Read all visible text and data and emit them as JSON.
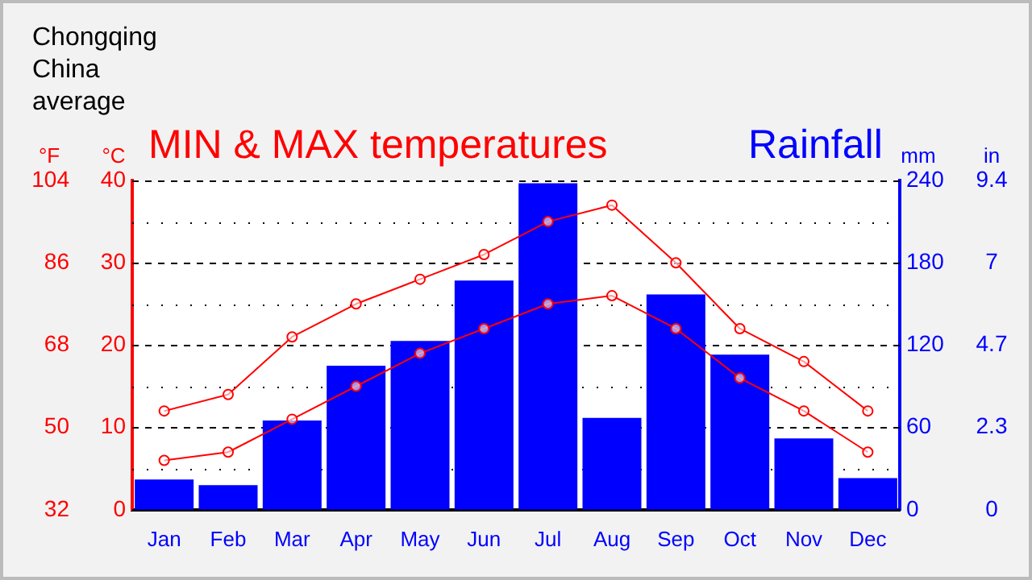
{
  "chart_data": {
    "type": "bar",
    "title": "Chongqing China average",
    "annotations": [
      "MIN & MAX temperatures",
      "Rainfall",
      "in",
      "0",
      "2.3",
      "4.7",
      "7",
      "9.4"
    ],
    "categories": [
      "Jan",
      "Feb",
      "Mar",
      "Apr",
      "May",
      "Jun",
      "Jul",
      "Aug",
      "Sep",
      "Oct",
      "Nov",
      "Dec"
    ],
    "series": [
      {
        "axis": "y2",
        "color": "#0000ff",
        "values": [
          22,
          18,
          65,
          105,
          123,
          167,
          238,
          67,
          157,
          113,
          52,
          23
        ]
      },
      {
        "type": "line",
        "axis": "y",
        "color": "#ff0000",
        "values": [
          12,
          14,
          21,
          25,
          28,
          31,
          35,
          37,
          30,
          22,
          18,
          12
        ]
      },
      {
        "type": "line",
        "axis": "y",
        "color": "#ff0000",
        "values": [
          6,
          7,
          11,
          15,
          19,
          22,
          25,
          26,
          22,
          16,
          12,
          7
        ]
      }
    ],
    "ylabel": "°C",
    "ylim": [
      0,
      40
    ],
    "yticks": [
      0,
      {
        "value": 5,
        "label": null
      },
      10,
      {
        "value": 15,
        "label": null
      },
      20,
      {
        "value": 25,
        "label": null
      },
      30,
      {
        "value": 35,
        "label": null
      },
      40
    ],
    "y2label": "mm",
    "y2lim": [
      0,
      240
    ],
    "y2ticks": [
      0,
      60,
      120,
      180,
      240
    ],
    "y3label": "°F",
    "y3lim": [
      32,
      104
    ],
    "y3ticks": [
      32,
      50,
      68,
      86,
      104
    ],
    "grid": "y",
    "legend": false,
    "marker": "circle",
    "line_style": "solid"
  }
}
